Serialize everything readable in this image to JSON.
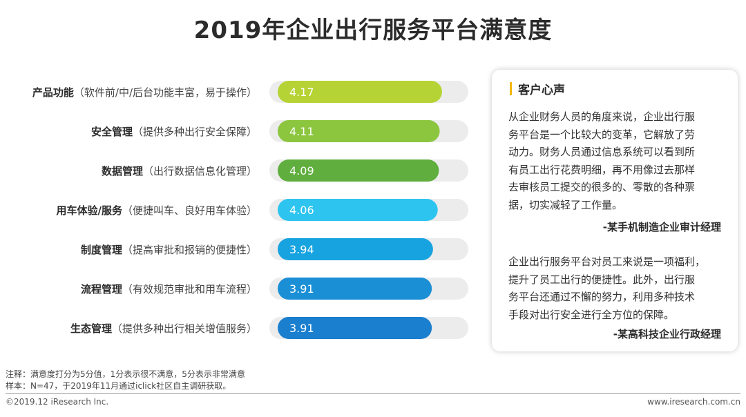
{
  "title": "2019年企业出行服务平台满意度",
  "chart_data": {
    "type": "bar",
    "orientation": "horizontal",
    "categories": [
      "产品功能",
      "安全管理",
      "数据管理",
      "用车体验/服务",
      "制度管理",
      "流程管理",
      "生态管理"
    ],
    "category_notes": [
      "（软件前/中/后台功能丰富，易于操作）",
      "（提供多种出行安全保障）",
      "（出行数据信息化管理）",
      "（便捷叫车、良好用车体验）",
      "（提高审批和报销的便捷性）",
      "（有效规范审批和用车流程）",
      "（提供多种出行相关增值服务）"
    ],
    "values": [
      4.17,
      4.11,
      4.09,
      4.06,
      3.94,
      3.91,
      3.91
    ],
    "value_labels": [
      "4.17",
      "4.11",
      "4.09",
      "4.06",
      "3.94",
      "3.91",
      "3.91"
    ],
    "bar_colors": [
      "#b5d334",
      "#8cc63f",
      "#5fae3e",
      "#2ec4f0",
      "#17a3e0",
      "#1a8fd6",
      "#1a7fcf"
    ],
    "track_color": "#ececec",
    "xlim": [
      0,
      5
    ],
    "grid": false,
    "legend": "none"
  },
  "card": {
    "heading": "客户心声",
    "quotes": [
      {
        "lines": [
          "从企业财务人员的角度来说，企业出行服",
          "务平台是一个比较大的变革，它解放了劳",
          "动力。财务人员通过信息系统可以看到所",
          "有员工出行花费明细，再不用像过去那样",
          "去审核员工提交的很多的、零散的各种票",
          "据，切实减轻了工作量。"
        ],
        "author": "-某手机制造企业审计经理"
      },
      {
        "lines": [
          "企业出行服务平台对员工来说是一项福利，",
          "提升了员工出行的便捷性。此外，出行服",
          "务平台还通过不懈的努力，利用多种技术",
          "手段对出行安全进行全方位的保障。"
        ],
        "author": "-某高科技企业行政经理"
      }
    ]
  },
  "notes": {
    "note1": "注释：满意度打分为5分值，1分表示很不满意，5分表示非常满意",
    "note2": "样本：N=47，于2019年11月通过iclick社区自主调研获取。"
  },
  "footer": {
    "copyright": "©2019.12 iResearch Inc.",
    "website": "www.iresearch.com.cn"
  },
  "colors": {
    "accent": "#f2b705"
  }
}
